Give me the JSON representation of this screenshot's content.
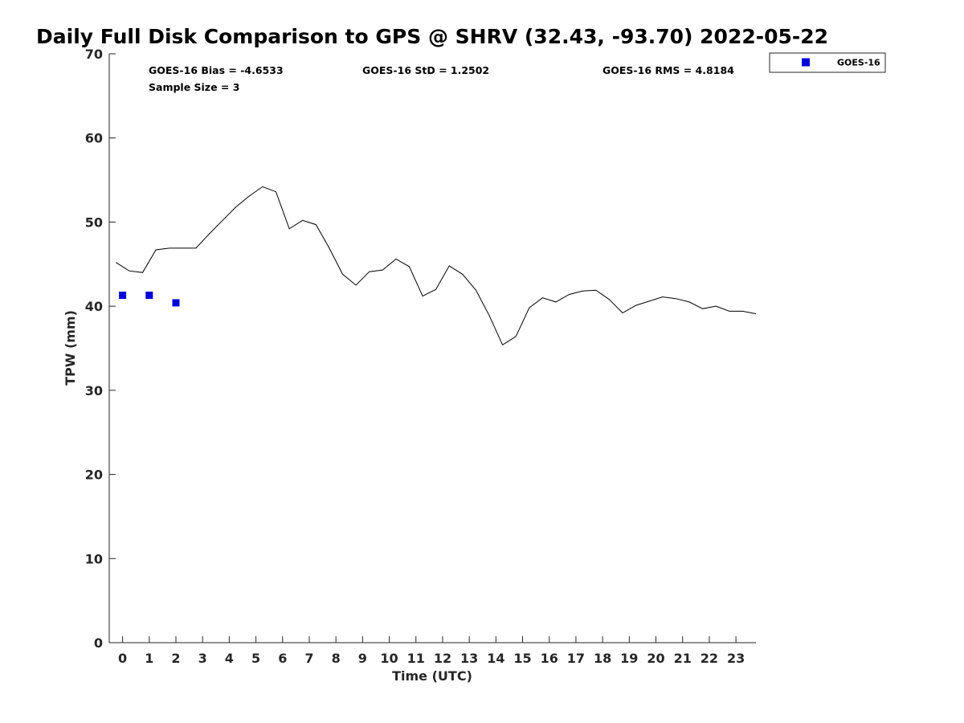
{
  "chart_data": {
    "type": "line",
    "title": "Daily Full Disk Comparison to GPS @ SHRV (32.43, -93.70) 2022-05-22",
    "xlabel": "Time (UTC)",
    "ylabel": "TPW (mm)",
    "xlim": [
      -0.5,
      23.75
    ],
    "ylim": [
      0,
      70
    ],
    "x_ticks": [
      0,
      1,
      2,
      3,
      4,
      5,
      6,
      7,
      8,
      9,
      10,
      11,
      12,
      13,
      14,
      15,
      16,
      17,
      18,
      19,
      20,
      21,
      22,
      23
    ],
    "y_ticks": [
      0,
      10,
      20,
      30,
      40,
      50,
      60,
      70
    ],
    "grid": false,
    "legend_position": "top-right",
    "stats": {
      "bias": "GOES-16 Bias = -4.6533",
      "std": "GOES-16 StD = 1.2502",
      "rms": "GOES-16 RMS = 4.8184",
      "sample_size": "Sample Size = 3"
    },
    "series": [
      {
        "kind": "line",
        "color": "#000000",
        "x": [
          -0.25,
          0.25,
          0.75,
          1.25,
          1.75,
          2.25,
          2.75,
          3.25,
          3.75,
          4.25,
          4.75,
          5.25,
          5.75,
          6.25,
          6.75,
          7.25,
          7.75,
          8.25,
          8.75,
          9.25,
          9.75,
          10.25,
          10.75,
          11.25,
          11.75,
          12.25,
          12.75,
          13.25,
          13.75,
          14.25,
          14.75,
          15.25,
          15.75,
          16.25,
          16.75,
          17.25,
          17.75,
          18.25,
          18.75,
          19.25,
          19.75,
          20.25,
          20.75,
          21.25,
          21.75,
          22.25,
          22.75,
          23.25,
          23.75
        ],
        "y": [
          45.2,
          44.2,
          44.0,
          46.7,
          46.9,
          46.9,
          46.9,
          48.6,
          50.2,
          51.8,
          53.1,
          54.2,
          53.6,
          49.2,
          50.2,
          49.7,
          46.9,
          43.8,
          42.5,
          44.1,
          44.3,
          45.6,
          44.7,
          41.2,
          42.0,
          44.8,
          43.8,
          41.9,
          38.9,
          35.4,
          36.4,
          39.8,
          41.0,
          40.5,
          41.4,
          41.8,
          41.9,
          40.8,
          39.2,
          40.1,
          40.6,
          41.1,
          40.9,
          40.5,
          39.7,
          40.0,
          39.4,
          39.4,
          39.1
        ]
      },
      {
        "name": "GOES-16",
        "kind": "scatter",
        "color": "#0000d8",
        "x": [
          0.0,
          1.0,
          2.0
        ],
        "y": [
          41.3,
          41.3,
          40.4
        ]
      }
    ]
  }
}
